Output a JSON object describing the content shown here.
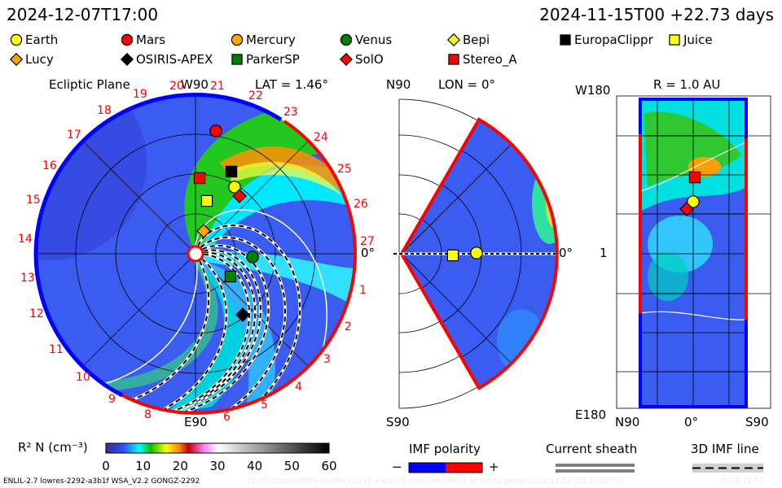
{
  "header": {
    "datetime": "2024-12-07T17:00",
    "run_info": "2024-11-15T00 +22.73 days"
  },
  "legend": [
    {
      "name": "Earth",
      "shape": "circle",
      "color": "#ffff00"
    },
    {
      "name": "Mars",
      "shape": "circle",
      "color": "#ff0000"
    },
    {
      "name": "Mercury",
      "shape": "circle",
      "color": "#ffa500"
    },
    {
      "name": "Venus",
      "shape": "circle",
      "color": "#008000"
    },
    {
      "name": "Bepi",
      "shape": "diamond",
      "color": "#ffff00"
    },
    {
      "name": "EuropaClippr",
      "shape": "square",
      "color": "#000000"
    },
    {
      "name": "Juice",
      "shape": "square",
      "color": "#ffff00"
    },
    {
      "name": "Lucy",
      "shape": "diamond",
      "color": "#ffa500"
    },
    {
      "name": "OSIRIS-APEX",
      "shape": "diamond",
      "color": "#000000"
    },
    {
      "name": "ParkerSP",
      "shape": "square",
      "color": "#008000"
    },
    {
      "name": "SolO",
      "shape": "diamond",
      "color": "#ff0000"
    },
    {
      "name": "Stereo_A",
      "shape": "square",
      "color": "#ff0000"
    }
  ],
  "ecliptic": {
    "title": "Ecliptic Plane",
    "top_label": "W90",
    "lat_label": "LAT = 1.46°",
    "right_label": "0°",
    "bottom_label": "E90",
    "carrington_labels": [
      "1",
      "2",
      "3",
      "4",
      "5",
      "6",
      "8",
      "9",
      "10",
      "11",
      "12",
      "13",
      "14",
      "15",
      "16",
      "17",
      "18",
      "19",
      "20",
      "21",
      "22",
      "23",
      "24",
      "25",
      "26",
      "27"
    ]
  },
  "meridional": {
    "top_label": "N90",
    "lon_label": "LON = 0°",
    "right_label": "0°",
    "bottom_label": "S90"
  },
  "radial": {
    "top_label": "W180",
    "r_label": "R = 1.0 AU",
    "mid_label": "1",
    "bottom_label": "E180",
    "x_labels": [
      "N90",
      "0°",
      "S90"
    ]
  },
  "chart_data": {
    "type": "heatmap",
    "quantity_label": "R² N (cm⁻³)",
    "colorbar": {
      "range": [
        0,
        60
      ],
      "ticks": [
        "0",
        "10",
        "20",
        "30",
        "40",
        "50",
        "60"
      ]
    },
    "panels": [
      "Ecliptic Plane",
      "LON = 0°",
      "R = 1.0 AU"
    ]
  },
  "footer": {
    "imf_polarity": {
      "title": "IMF polarity",
      "minus": "−",
      "plus": "+",
      "neg_color": "#0000ff",
      "pos_color": "#ff0000"
    },
    "current_sheath": {
      "title": "Current sheath"
    },
    "imf_line": {
      "title": "3D IMF line"
    },
    "model_info": "ENLIL-2.7 lowres-2292-a3b1f WSA_V2.2 GONGZ-2292",
    "faint_info": "E1207154501/256x30x90x1.2292-a3b1f.16-mcp1umn1cd-1.g53q5d2.gongz-2024:11:14T20:21:00T00",
    "faint_date": "2024-12-07"
  },
  "colors": {
    "background_blue": "#3c5cf0",
    "positive": "#ff0000",
    "negative": "#0000ff"
  }
}
